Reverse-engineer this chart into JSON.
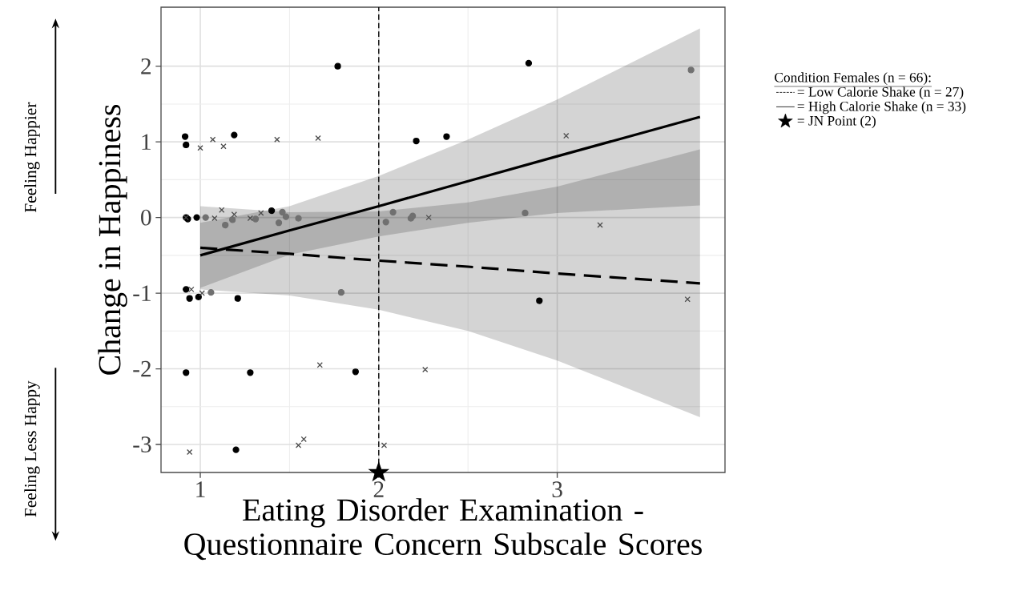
{
  "chart_data": {
    "type": "scatter",
    "xlabel": "Eating Disorder Examination - Questionnaire Concern Subscale Scores",
    "ylabel": "Change in Happiness",
    "legend_title": "Condition Females (n = 66):",
    "annotations": [
      "Feeling Happier",
      "Feeling Less Happy"
    ],
    "xlim": [
      0.78,
      3.94
    ],
    "ylim": [
      -3.37,
      2.78
    ],
    "xticks": [
      1,
      2,
      3
    ],
    "yticks": [
      -3,
      -2,
      -1,
      0,
      1,
      2
    ],
    "grid": true,
    "legend": "right",
    "ref_lines": [
      {
        "axis": "x",
        "value": 2,
        "line_style": "dashed",
        "color": "#000000"
      }
    ],
    "series": [
      {
        "type": "line",
        "name": "= Low Calorie Shake (n = 27)",
        "color": "#000000",
        "line_style": "dashed",
        "marker": "none",
        "x": [
          1,
          1.5,
          2,
          2.5,
          3,
          3.8
        ],
        "values": [
          -0.4,
          -0.48,
          -0.57,
          -0.65,
          -0.74,
          -0.87
        ],
        "lower": [
          -0.95,
          -1.03,
          -1.22,
          -1.5,
          -1.89,
          -2.64
        ],
        "upper": [
          0.15,
          0.07,
          0.08,
          0.2,
          0.41,
          0.9
        ]
      },
      {
        "type": "line",
        "name": "= High Calorie Shake (n = 33)",
        "color": "#000000",
        "line_style": "solid",
        "marker": "none",
        "x": [
          1,
          1.5,
          2,
          2.5,
          3,
          3.8
        ],
        "values": [
          -0.5,
          -0.17,
          0.15,
          0.48,
          0.81,
          1.33
        ],
        "lower": [
          -0.93,
          -0.49,
          -0.25,
          -0.07,
          0.06,
          0.16
        ],
        "upper": [
          -0.07,
          0.15,
          0.55,
          1.03,
          1.56,
          2.5
        ]
      },
      {
        "color": "#000000",
        "marker": "circle",
        "x": [
          1.77,
          0.915,
          0.92,
          1.19,
          2.21,
          2.38,
          2.84,
          0.92,
          0.93,
          0.98,
          1.4,
          0.92,
          0.94,
          0.99,
          1.21,
          0.92,
          1.28,
          1.87,
          1.2,
          2.9
        ],
        "values": [
          2.0,
          1.07,
          0.96,
          1.09,
          1.01,
          1.07,
          2.04,
          0.0,
          -0.02,
          0.0,
          0.09,
          -0.95,
          -1.07,
          -1.05,
          -1.07,
          -2.05,
          -2.05,
          -2.04,
          -3.07,
          -1.1
        ]
      },
      {
        "color": "#707070",
        "marker": "circle",
        "x": [
          1.03,
          1.14,
          1.18,
          1.31,
          1.44,
          1.46,
          1.48,
          1.55,
          2.04,
          2.08,
          2.18,
          2.19,
          2.82,
          3.75,
          1.06,
          1.79
        ],
        "values": [
          0.0,
          -0.1,
          -0.03,
          -0.02,
          -0.07,
          0.07,
          0.01,
          -0.01,
          -0.06,
          0.07,
          -0.01,
          0.02,
          0.06,
          1.95,
          -0.99,
          -0.99
        ]
      },
      {
        "color": "#4d4d4d",
        "marker": "cross",
        "x": [
          1.0,
          1.07,
          1.13,
          1.43,
          1.66,
          0.92,
          1.08,
          1.12,
          1.19,
          1.28,
          1.34,
          2.28,
          3.05,
          3.24,
          0.95,
          1.01,
          1.67,
          2.26,
          0.94,
          1.55,
          1.58,
          2.03,
          3.73
        ],
        "values": [
          0.92,
          1.03,
          0.94,
          1.03,
          1.05,
          0.0,
          -0.01,
          0.1,
          0.04,
          -0.01,
          0.06,
          0.0,
          1.08,
          -0.1,
          -0.95,
          -1.0,
          -1.95,
          -2.01,
          -3.1,
          -3.01,
          -2.93,
          -3.01,
          -1.08
        ]
      },
      {
        "name": "= JN Point (2)",
        "color": "#000000",
        "marker": "star",
        "x": [
          2
        ],
        "values": [
          -3.37
        ]
      }
    ]
  }
}
